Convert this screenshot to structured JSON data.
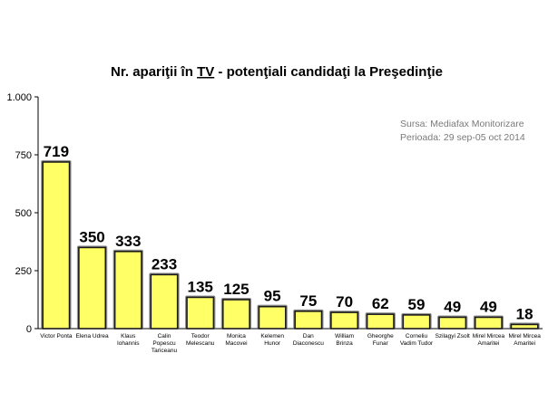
{
  "chart_data": {
    "type": "bar",
    "title_parts": [
      "Nr. apariţii în ",
      "TV",
      " - potenţiali candidaţi la Preşedinţie"
    ],
    "categories": [
      [
        "Victor Ponta"
      ],
      [
        "Elena Udrea"
      ],
      [
        "Klaus",
        "Iohannis"
      ],
      [
        "Calin",
        "Popescu",
        "Tariceanu"
      ],
      [
        "Teodor",
        "Melescanu"
      ],
      [
        "Monica",
        "Macovei"
      ],
      [
        "Kelemen",
        "Hunor"
      ],
      [
        "Dan",
        "Diaconescu"
      ],
      [
        "William",
        "Brinza"
      ],
      [
        "Gheorghe",
        "Funar"
      ],
      [
        "Corneliu",
        "Vadim Tudor"
      ],
      [
        "Szilagyi Zsolt"
      ],
      [
        "Mirel Mircea",
        "Amaritei"
      ],
      [
        "Mirel Mircea",
        "Amaritei"
      ]
    ],
    "values": [
      719,
      350,
      333,
      233,
      135,
      125,
      95,
      75,
      70,
      62,
      59,
      49,
      49,
      18
    ],
    "ylim": [
      0,
      1000
    ],
    "yticks": [
      0,
      250,
      500,
      750,
      1000
    ],
    "ytick_labels": [
      "0",
      "250",
      "500",
      "750",
      "1.000"
    ],
    "bar_color": "#ffff66",
    "bar_outline_color": "#1a1a1a",
    "grid": false,
    "source": {
      "line1": "Sursa: Mediafax Monitorizare",
      "line2": "Perioada: 29 sep-05 oct 2014"
    }
  }
}
